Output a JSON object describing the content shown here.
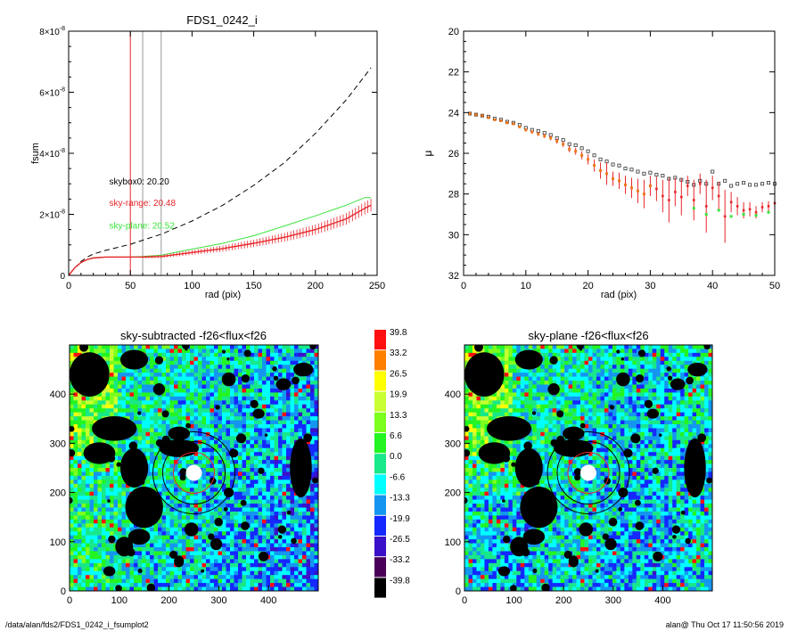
{
  "footer": {
    "path": "/data/alan/fds2/FDS1_0242_i_fsumplot2",
    "stamp": "alan@  Thu Oct 17 11:50:56 2019"
  },
  "colors": {
    "red": "#e8262b",
    "green": "#3ce43c",
    "grey": "#9a9a9a",
    "orange": "#f07a1e",
    "dark": "#333333"
  },
  "chart_data": [
    {
      "type": "line",
      "title": "FDS1_0242_i",
      "xlabel": "rad (pix)",
      "ylabel": "fsum",
      "xlim": [
        0,
        250
      ],
      "ylim": [
        0,
        8e-08
      ],
      "xticks": [
        "0",
        "50",
        "100",
        "150",
        "200",
        "250"
      ],
      "yticks": [
        {
          "value": 0,
          "label": "0"
        },
        {
          "value": 2e-08,
          "label": "2×10",
          "exp": "-8"
        },
        {
          "value": 4e-08,
          "label": "4×10",
          "exp": "-8"
        },
        {
          "value": 6e-08,
          "label": "6×10",
          "exp": "-8"
        },
        {
          "value": 8e-08,
          "label": "8×10",
          "exp": "-8"
        }
      ],
      "vlines": [
        {
          "x": 50,
          "color": "#e8262b"
        },
        {
          "x": 60,
          "color": "#9a9a9a"
        },
        {
          "x": 75,
          "color": "#9a9a9a"
        }
      ],
      "annotations": [
        {
          "text": "skybox0: 20.20",
          "color": "#000000",
          "x": 30,
          "y": 3.1e-08
        },
        {
          "text": "sky-range: 20.48",
          "color": "#e8262b",
          "x": 30,
          "y": 2.4e-08
        },
        {
          "text": "sky-plane: 20.52",
          "color": "#3ce43c",
          "x": 30,
          "y": 1.65e-08
        }
      ],
      "series": [
        {
          "style": "dashed",
          "color": "#000000",
          "x": [
            0,
            5,
            10,
            15,
            20,
            30,
            40,
            50,
            60,
            75,
            100,
            125,
            150,
            175,
            200,
            225,
            245
          ],
          "y": [
            0,
            2.5e-09,
            4.5e-09,
            6e-09,
            7e-09,
            8.2e-09,
            9.2e-09,
            1.02e-08,
            1.15e-08,
            1.35e-08,
            1.78e-08,
            2.3e-08,
            2.95e-08,
            3.7e-08,
            4.65e-08,
            5.75e-08,
            6.8e-08
          ]
        },
        {
          "style": "solid",
          "color": "#3ce43c",
          "x": [
            0,
            5,
            10,
            15,
            20,
            30,
            40,
            50,
            60,
            75,
            100,
            125,
            150,
            175,
            200,
            225,
            240,
            245
          ],
          "y": [
            0,
            2.5e-09,
            4.2e-09,
            5.2e-09,
            5.8e-09,
            6e-09,
            6e-09,
            6e-09,
            6.2e-09,
            6.6e-09,
            8.6e-09,
            1.05e-08,
            1.3e-08,
            1.62e-08,
            1.95e-08,
            2.3e-08,
            2.55e-08,
            2.55e-08
          ]
        },
        {
          "style": "errorbars",
          "color": "#e8262b",
          "x": [
            0,
            5,
            10,
            15,
            20,
            30,
            40,
            50,
            60,
            75,
            100,
            125,
            150,
            175,
            200,
            225,
            240,
            245
          ],
          "y": [
            0,
            2.5e-09,
            4.2e-09,
            5.2e-09,
            5.7e-09,
            6e-09,
            6e-09,
            6e-09,
            6e-09,
            6.2e-09,
            7.5e-09,
            8.8e-09,
            1.05e-08,
            1.25e-08,
            1.5e-08,
            1.85e-08,
            2.2e-08,
            2.3e-08
          ]
        }
      ]
    },
    {
      "type": "scatter",
      "title": "",
      "xlabel": "rad (pix)",
      "ylabel": "μ",
      "xlim": [
        0,
        50
      ],
      "ylim": [
        32,
        20
      ],
      "xticks": [
        "0",
        "10",
        "20",
        "30",
        "40",
        "50"
      ],
      "yticks": [
        "20",
        "22",
        "24",
        "26",
        "28",
        "30",
        "32"
      ],
      "series": [
        {
          "marker": "open-square",
          "color": "#333333",
          "x": [
            1,
            2,
            3,
            4,
            5,
            6,
            7,
            8,
            9,
            10,
            11,
            12,
            13,
            14,
            15,
            16,
            17,
            18,
            19,
            20,
            21,
            22,
            23,
            24,
            25,
            26,
            27,
            28,
            29,
            30,
            31,
            32,
            33,
            34,
            35,
            36,
            37,
            38,
            39,
            40,
            41,
            42,
            43,
            44,
            45,
            46,
            47,
            48,
            49,
            50
          ],
          "y": [
            24.05,
            24.1,
            24.15,
            24.2,
            24.3,
            24.35,
            24.45,
            24.5,
            24.6,
            24.75,
            24.85,
            24.9,
            25.0,
            25.1,
            25.25,
            25.35,
            25.55,
            25.6,
            25.75,
            25.9,
            26.1,
            26.3,
            26.4,
            26.55,
            26.6,
            26.75,
            26.8,
            26.9,
            27.0,
            26.95,
            27.05,
            27.1,
            27.25,
            27.2,
            27.3,
            27.4,
            27.55,
            27.35,
            27.5,
            26.9,
            27.5,
            27.35,
            27.6,
            27.5,
            27.45,
            27.55,
            27.55,
            27.5,
            27.45,
            27.5
          ]
        },
        {
          "marker": "errorbars",
          "color": "#e8262b",
          "x": [
            1,
            2,
            3,
            4,
            5,
            6,
            7,
            8,
            9,
            10,
            11,
            12,
            13,
            14,
            15,
            16,
            17,
            18,
            19,
            20,
            21,
            22,
            23,
            24,
            25,
            26,
            27,
            28,
            29,
            30,
            31,
            32,
            33,
            34,
            35,
            36,
            37,
            38,
            39,
            40,
            41,
            42,
            43,
            44,
            45,
            46,
            47,
            48,
            49,
            50
          ],
          "y": [
            24.05,
            24.1,
            24.15,
            24.25,
            24.35,
            24.4,
            24.5,
            24.55,
            24.7,
            24.85,
            24.95,
            25.05,
            25.15,
            25.25,
            25.4,
            25.55,
            25.8,
            25.9,
            26.1,
            26.3,
            26.6,
            26.85,
            27.0,
            27.25,
            27.35,
            27.55,
            27.7,
            27.85,
            28.0,
            27.6,
            27.75,
            28.1,
            28.3,
            27.9,
            28.15,
            27.6,
            28.3,
            27.5,
            28.6,
            27.7,
            28.1,
            29.1,
            28.4,
            28.6,
            28.8,
            28.75,
            28.9,
            28.65,
            28.6,
            28.45
          ],
          "err": [
            0.05,
            0.05,
            0.05,
            0.05,
            0.05,
            0.06,
            0.06,
            0.07,
            0.07,
            0.08,
            0.08,
            0.09,
            0.1,
            0.11,
            0.12,
            0.14,
            0.15,
            0.17,
            0.2,
            0.25,
            0.3,
            0.4,
            0.55,
            0.35,
            0.4,
            0.45,
            0.5,
            0.6,
            0.7,
            0.5,
            0.6,
            0.8,
            1.1,
            0.7,
            0.9,
            0.5,
            1.0,
            0.5,
            1.3,
            0.6,
            0.7,
            1.3,
            0.5,
            0.45,
            0.4,
            0.35,
            0.3,
            0.25,
            0.25,
            0.2
          ]
        },
        {
          "marker": "filled-square",
          "color": "#f07a1e",
          "x": [
            1,
            2,
            3,
            4,
            5,
            6,
            7,
            8,
            9,
            10,
            11,
            12,
            13,
            14,
            15,
            16,
            17,
            18,
            19,
            20,
            21,
            22,
            23,
            24,
            25,
            26,
            27,
            28,
            29,
            30
          ],
          "y": [
            24.05,
            24.1,
            24.15,
            24.25,
            24.35,
            24.4,
            24.5,
            24.55,
            24.7,
            24.85,
            24.95,
            25.05,
            25.15,
            25.25,
            25.4,
            25.55,
            25.8,
            25.9,
            26.1,
            26.3,
            26.6,
            26.85,
            27.0,
            27.25,
            27.35,
            27.55,
            27.7,
            27.85,
            28.0,
            27.6
          ]
        },
        {
          "marker": "filled-square",
          "color": "#3ce43c",
          "x": [
            37,
            39,
            41,
            43,
            45,
            47,
            49
          ],
          "y": [
            28.7,
            29.0,
            28.8,
            29.1,
            29.0,
            29.05,
            28.9
          ]
        }
      ]
    },
    {
      "type": "heatmap",
      "title": "sky-subtracted -f26<flux<f26",
      "xlim": [
        0,
        500
      ],
      "ylim": [
        0,
        500
      ],
      "xticks": [
        "0",
        "100",
        "200",
        "300",
        "400"
      ],
      "yticks": [
        "0",
        "100",
        "200",
        "300",
        "400"
      ],
      "seed": 11
    },
    {
      "type": "heatmap",
      "title": "sky-plane -f26<flux<f26",
      "xlim": [
        0,
        500
      ],
      "ylim": [
        0,
        500
      ],
      "xticks": [
        "0",
        "100",
        "200",
        "300",
        "400"
      ],
      "yticks": [
        "0",
        "100",
        "200",
        "300",
        "400"
      ],
      "seed": 11
    }
  ],
  "colorbar": {
    "labels": [
      "39.8",
      "33.2",
      "26.5",
      "19.9",
      "13.3",
      "6.6",
      "0.0",
      "-6.6",
      "-13.3",
      "-19.9",
      "-26.5",
      "-33.2",
      "-39.8"
    ],
    "colors": [
      "#ff1010",
      "#ff8000",
      "#ffff00",
      "#c8ff32",
      "#7dff1e",
      "#22f522",
      "#18e88a",
      "#00ffff",
      "#1496f0",
      "#1428ff",
      "#3a10c8",
      "#4a0058",
      "#000000"
    ]
  }
}
